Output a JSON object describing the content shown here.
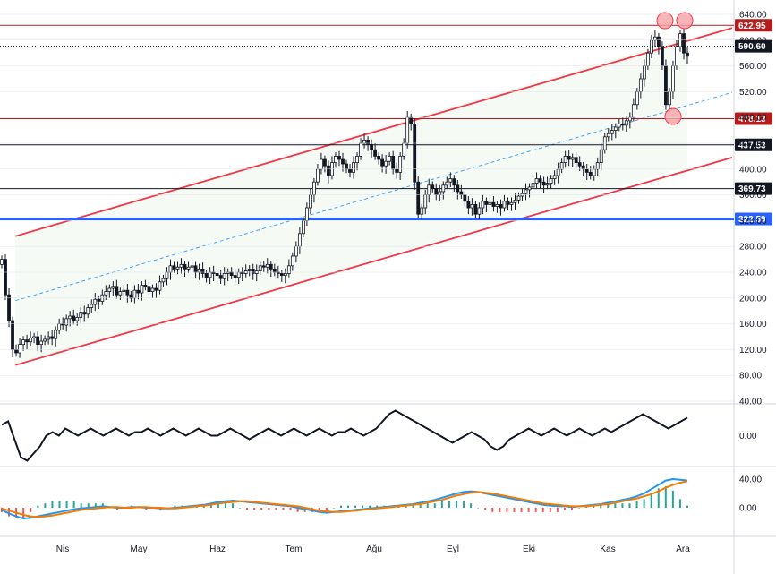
{
  "colors": {
    "up": "#131722",
    "down": "#131722",
    "resistance": "#b71c1c",
    "support_blue": "#2962ff",
    "channel": "#f23645",
    "channel_fill": "#e8f5e9",
    "mid_line": "#42a5f5",
    "grid": "#e0e3eb",
    "macd": "#2196f3",
    "signal": "#f57c00",
    "hist_pos": "#26a69a",
    "hist_neg": "#ef5350",
    "marker": "#f7a1a6"
  },
  "price_axis": {
    "min": 40,
    "max": 640,
    "ticks": [
      "640.00",
      "600.00",
      "560.00",
      "520.00",
      "480.00",
      "440.00",
      "400.00",
      "360.00",
      "320.00",
      "280.00",
      "240.00",
      "200.00",
      "160.00",
      "120.00",
      "80.00",
      "40.00"
    ]
  },
  "time_axis": {
    "labels": [
      "Nis",
      "May",
      "Haz",
      "Tem",
      "Ağu",
      "Eyl",
      "Eki",
      "Kas",
      "Ara"
    ]
  },
  "horizontal_levels": [
    {
      "value": 622.95,
      "label": "622.95",
      "color": "#b71c1c",
      "style": "solid"
    },
    {
      "value": 590.6,
      "label": "590.60",
      "color": "#131722",
      "style": "dotted"
    },
    {
      "value": 478.13,
      "label": "478.13",
      "color": "#b71c1c",
      "style": "solid"
    },
    {
      "value": 437.53,
      "label": "437.53",
      "color": "#131722",
      "style": "solid"
    },
    {
      "value": 369.73,
      "label": "369.73",
      "color": "#131722",
      "style": "solid"
    },
    {
      "value": 322.59,
      "label": "322.59",
      "color": "#2962ff",
      "style": "thick"
    }
  ],
  "oscillator_axis": {
    "ticks": [
      "0.00"
    ]
  },
  "macd_axis": {
    "ticks": [
      "40.00",
      "0.00"
    ]
  },
  "chart_data": {
    "type": "candlestick",
    "panes": [
      "price",
      "oscillator",
      "macd"
    ],
    "price_range": [
      40,
      640
    ],
    "x_labels": [
      "Nis",
      "May",
      "Haz",
      "Tem",
      "Ağu",
      "Eyl",
      "Eki",
      "Kas",
      "Ara"
    ],
    "closes": [
      260,
      205,
      165,
      120,
      115,
      128,
      135,
      132,
      138,
      140,
      128,
      133,
      136,
      140,
      137,
      150,
      160,
      158,
      168,
      172,
      165,
      170,
      178,
      175,
      185,
      190,
      198,
      195,
      205,
      210,
      215,
      218,
      205,
      210,
      212,
      205,
      200,
      212,
      208,
      220,
      218,
      210,
      215,
      212,
      225,
      230,
      240,
      250,
      245,
      248,
      252,
      245,
      248,
      250,
      240,
      245,
      238,
      232,
      240,
      238,
      235,
      230,
      238,
      240,
      235,
      232,
      240,
      238,
      242,
      245,
      238,
      242,
      250,
      248,
      252,
      245,
      240,
      238,
      235,
      238,
      250,
      265,
      280,
      300,
      320,
      340,
      360,
      380,
      400,
      415,
      405,
      390,
      410,
      420,
      415,
      408,
      400,
      395,
      410,
      420,
      440,
      445,
      438,
      430,
      420,
      415,
      405,
      412,
      420,
      400,
      395,
      420,
      440,
      480,
      470,
      380,
      330,
      340,
      360,
      375,
      370,
      360,
      365,
      375,
      380,
      385,
      375,
      365,
      360,
      350,
      340,
      345,
      330,
      340,
      350,
      345,
      348,
      342,
      345,
      340,
      350,
      345,
      348,
      352,
      358,
      362,
      368,
      372,
      378,
      385,
      380,
      375,
      378,
      385,
      390,
      400,
      410,
      420,
      415,
      418,
      410,
      405,
      400,
      395,
      390,
      400,
      410,
      430,
      450,
      455,
      460,
      465,
      470,
      468,
      475,
      480,
      500,
      520,
      540,
      560,
      580,
      600,
      605,
      590,
      560,
      500,
      520,
      560,
      590,
      610,
      580,
      575
    ],
    "levels": [
      622.95,
      590.6,
      478.13,
      437.53,
      369.73,
      322.59
    ],
    "channel_upper": [
      [
        0.02,
        296
      ],
      [
        1.0,
        605
      ]
    ],
    "channel_lower": [
      [
        0.02,
        96
      ],
      [
        1.0,
        404
      ]
    ],
    "channel_mid": [
      [
        0.02,
        196
      ],
      [
        1.0,
        505
      ]
    ],
    "oscillator": [
      3,
      4,
      -1,
      -6,
      -7,
      -5,
      -3,
      0,
      1,
      0,
      2,
      1,
      0,
      1,
      2,
      1,
      0,
      1,
      2,
      1,
      0,
      1,
      1,
      2,
      1,
      0,
      1,
      2,
      1,
      0,
      1,
      2,
      1,
      0,
      0,
      1,
      2,
      1,
      0,
      -1,
      0,
      1,
      2,
      1,
      0,
      1,
      2,
      1,
      0,
      1,
      2,
      1,
      0,
      1,
      1,
      2,
      1,
      0,
      1,
      2,
      4,
      6,
      7,
      6,
      5,
      4,
      3,
      2,
      1,
      0,
      -1,
      -2,
      -1,
      0,
      1,
      0,
      -1,
      -3,
      -4,
      -3,
      -1,
      0,
      1,
      2,
      1,
      0,
      1,
      2,
      1,
      0,
      1,
      2,
      1,
      0,
      1,
      2,
      1,
      2,
      3,
      4,
      5,
      6,
      5,
      4,
      3,
      2,
      3,
      4,
      5
    ],
    "macd": [
      -3,
      -8,
      -12,
      -15,
      -14,
      -12,
      -10,
      -8,
      -6,
      -4,
      -2,
      -1,
      0,
      1,
      2,
      1,
      0,
      0,
      1,
      1,
      0,
      0,
      -1,
      -1,
      0,
      1,
      2,
      3,
      4,
      6,
      8,
      9,
      10,
      9,
      8,
      7,
      6,
      5,
      4,
      3,
      2,
      0,
      -2,
      -4,
      -6,
      -7,
      -6,
      -5,
      -4,
      -3,
      -2,
      -1,
      0,
      1,
      2,
      3,
      4,
      5,
      7,
      9,
      11,
      14,
      17,
      20,
      22,
      23,
      22,
      20,
      18,
      16,
      14,
      12,
      10,
      8,
      6,
      4,
      3,
      2,
      2,
      1,
      2,
      3,
      4,
      5,
      7,
      9,
      11,
      13,
      16,
      20,
      26,
      32,
      38,
      40,
      39,
      38
    ],
    "signal": [
      -1,
      -4,
      -7,
      -10,
      -12,
      -13,
      -12,
      -11,
      -9,
      -7,
      -5,
      -3,
      -2,
      -1,
      0,
      1,
      1,
      0,
      0,
      1,
      1,
      0,
      0,
      -1,
      -1,
      0,
      1,
      2,
      3,
      4,
      6,
      7,
      8,
      9,
      9,
      8,
      7,
      6,
      5,
      4,
      3,
      2,
      0,
      -2,
      -4,
      -5,
      -6,
      -6,
      -5,
      -4,
      -3,
      -2,
      -1,
      0,
      1,
      2,
      3,
      4,
      5,
      7,
      9,
      11,
      14,
      17,
      19,
      21,
      22,
      21,
      20,
      18,
      16,
      14,
      12,
      10,
      8,
      6,
      5,
      4,
      3,
      2,
      2,
      2,
      3,
      4,
      5,
      7,
      9,
      11,
      13,
      16,
      19,
      23,
      28,
      32,
      35,
      37
    ]
  }
}
